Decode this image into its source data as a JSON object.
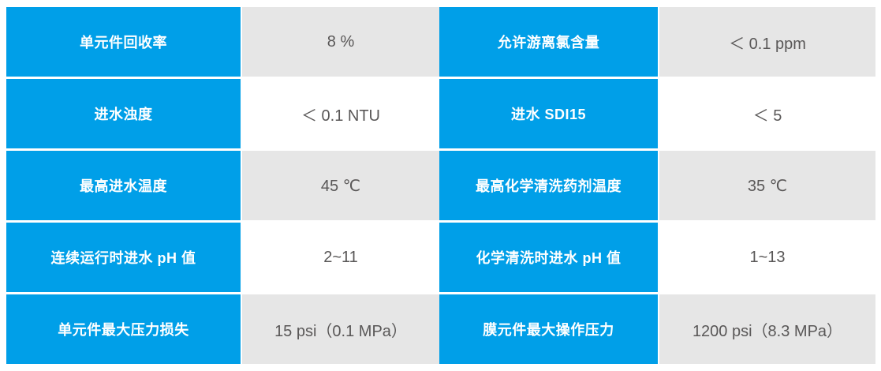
{
  "table": {
    "description": "membrane-element-operating-limits-spec-table",
    "colors": {
      "label_bg": "#009FE8",
      "label_text": "#FFFFFF",
      "value_bg_shaded": "#E6E6E6",
      "value_bg_plain": "#FFFFFF",
      "value_text": "#595757"
    },
    "rows": [
      {
        "cells": [
          {
            "label": "单元件回收率",
            "value": "8 %"
          },
          {
            "label": "允许游离氯含量",
            "value": "＜ 0.1 ppm"
          }
        ]
      },
      {
        "cells": [
          {
            "label": "进水浊度",
            "value": "＜ 0.1 NTU"
          },
          {
            "label": "进水 SDI15",
            "value": "＜ 5"
          }
        ]
      },
      {
        "cells": [
          {
            "label": "最高进水温度",
            "value": "45 ℃"
          },
          {
            "label": "最高化学清洗药剂温度",
            "value": "35 ℃"
          }
        ]
      },
      {
        "cells": [
          {
            "label": "连续运行时进水 pH 值",
            "value": "2~11"
          },
          {
            "label": "化学清洗时进水 pH 值",
            "value": "1~13"
          }
        ]
      },
      {
        "cells": [
          {
            "label": "单元件最大压力损失",
            "value": "15 psi（0.1 MPa）"
          },
          {
            "label": "膜元件最大操作压力",
            "value": "1200 psi（8.3 MPa）"
          }
        ]
      }
    ]
  }
}
